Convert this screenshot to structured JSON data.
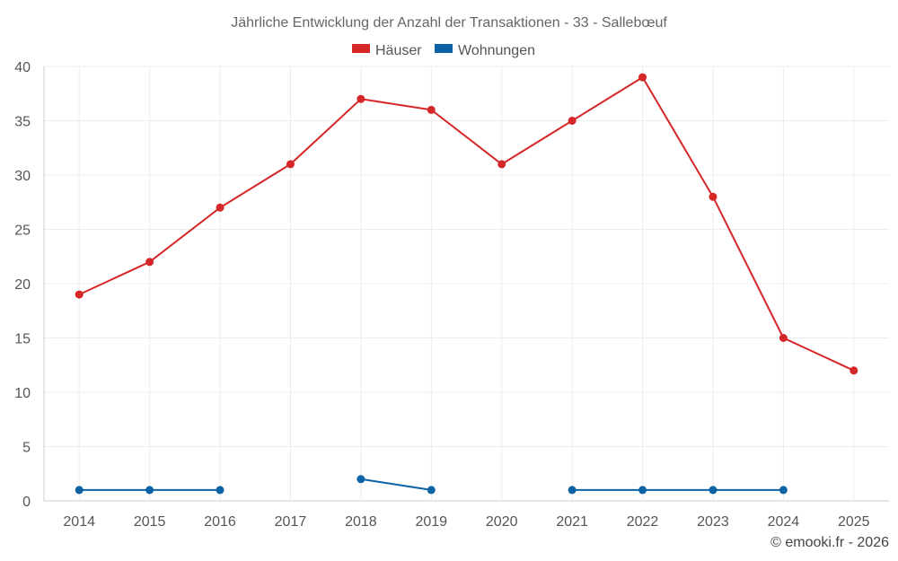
{
  "chart_data": {
    "type": "line",
    "title": "Jährliche Entwicklung der Anzahl der Transaktionen - 33 - Sallebœuf",
    "categories": [
      "2014",
      "2015",
      "2016",
      "2017",
      "2018",
      "2019",
      "2020",
      "2021",
      "2022",
      "2023",
      "2024",
      "2025"
    ],
    "series": [
      {
        "name": "Häuser",
        "color": "#d62728",
        "values": [
          19,
          22,
          27,
          31,
          37,
          36,
          31,
          35,
          39,
          28,
          15,
          12
        ]
      },
      {
        "name": "Wohnungen",
        "color": "#0b62a4",
        "values": [
          1,
          1,
          1,
          null,
          2,
          1,
          null,
          1,
          1,
          1,
          1,
          null
        ]
      }
    ],
    "ylim": [
      0,
      40
    ],
    "yticks": [
      0,
      5,
      10,
      15,
      20,
      25,
      30,
      35,
      40
    ],
    "grid": true,
    "legend": "top-center",
    "xlabel": "",
    "ylabel": ""
  },
  "credit": "© emooki.fr - 2026"
}
